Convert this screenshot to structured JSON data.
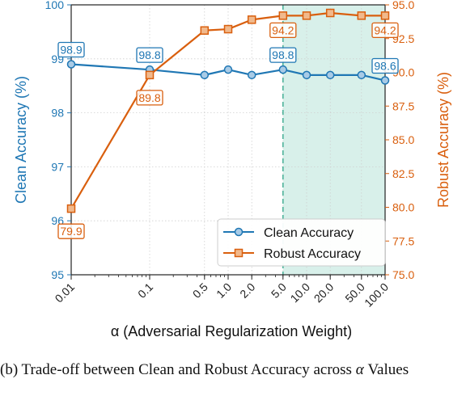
{
  "colors": {
    "clean": "#1f77b4",
    "robust": "#d95f0e",
    "shade": "#d8f0ea",
    "vline": "#3aaa8f",
    "grid": "#cfcfcf"
  },
  "chart_data": {
    "type": "line",
    "xscale": "log",
    "x": [
      0.01,
      0.1,
      0.5,
      1.0,
      2.0,
      5.0,
      10.0,
      20.0,
      50.0,
      100.0
    ],
    "xtick_labels": [
      "0.01",
      "0.1",
      "0.5",
      "1.0",
      "2.0",
      "5.0",
      "10.0",
      "20.0",
      "50.0",
      "100.0"
    ],
    "xlabel": "α (Adversarial Regularization Weight)",
    "xlim": [
      0.01,
      100
    ],
    "left_axis": {
      "ylabel": "Clean Accuracy (%)",
      "ylim": [
        95,
        100
      ],
      "ticks": [
        "95",
        "96",
        "97",
        "98",
        "99",
        "100"
      ]
    },
    "right_axis": {
      "ylabel": "Robust Accuracy (%)",
      "ylim": [
        75,
        95
      ],
      "ticks": [
        "75.0",
        "77.5",
        "80.0",
        "82.5",
        "85.0",
        "87.5",
        "90.0",
        "92.5",
        "95.0"
      ]
    },
    "series": [
      {
        "name": "Clean Accuracy",
        "axis": "left",
        "marker": "circle",
        "values": [
          98.9,
          98.8,
          98.7,
          98.8,
          98.7,
          98.8,
          98.7,
          98.7,
          98.7,
          98.6
        ]
      },
      {
        "name": "Robust Accuracy",
        "axis": "right",
        "marker": "square",
        "values": [
          79.9,
          89.8,
          93.1,
          93.2,
          93.9,
          94.2,
          94.2,
          94.4,
          94.2,
          94.2
        ]
      }
    ],
    "annotations": [
      {
        "series": 0,
        "index": 0,
        "text": "98.9"
      },
      {
        "series": 0,
        "index": 1,
        "text": "98.8"
      },
      {
        "series": 0,
        "index": 5,
        "text": "98.8"
      },
      {
        "series": 0,
        "index": 9,
        "text": "98.6"
      },
      {
        "series": 1,
        "index": 0,
        "text": "79.9"
      },
      {
        "series": 1,
        "index": 1,
        "text": "89.8"
      },
      {
        "series": 1,
        "index": 5,
        "text": "94.2"
      },
      {
        "series": 1,
        "index": 9,
        "text": "94.2"
      }
    ],
    "highlight_region": {
      "x_from": 5.0,
      "x_to": 100.0
    },
    "vline_x": 5.0,
    "grid": true,
    "legend": "lower-right"
  },
  "caption": {
    "prefix": "(b) Trade-off between Clean and Robust Accuracy across ",
    "alpha": "α",
    "suffix": " Values"
  }
}
